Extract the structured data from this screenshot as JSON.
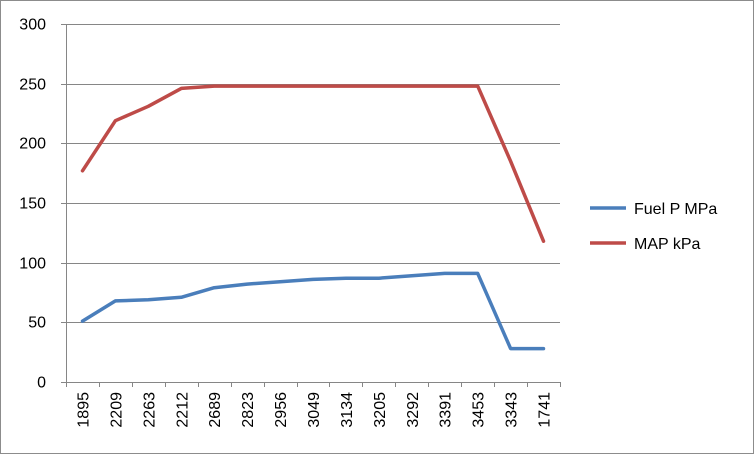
{
  "chart_data": {
    "type": "line",
    "title": "",
    "xlabel": "",
    "ylabel": "",
    "categories": [
      "1895",
      "2209",
      "2263",
      "2212",
      "2689",
      "2823",
      "2956",
      "3049",
      "3134",
      "3205",
      "3292",
      "3391",
      "3453",
      "3343",
      "1741"
    ],
    "ylim": [
      0,
      300
    ],
    "yticks": [
      0,
      50,
      100,
      150,
      200,
      250,
      300
    ],
    "grid": true,
    "legend_position": "right",
    "series": [
      {
        "name": "Fuel P MPa",
        "color": "#4a7ebb",
        "values": [
          51,
          68,
          69,
          71,
          79,
          82,
          84,
          86,
          87,
          87,
          89,
          91,
          91,
          28,
          28
        ]
      },
      {
        "name": "MAP kPa",
        "color": "#be4b48",
        "values": [
          177,
          219,
          231,
          246,
          248,
          248,
          248,
          248,
          248,
          248,
          248,
          248,
          248,
          185,
          118
        ]
      }
    ]
  }
}
